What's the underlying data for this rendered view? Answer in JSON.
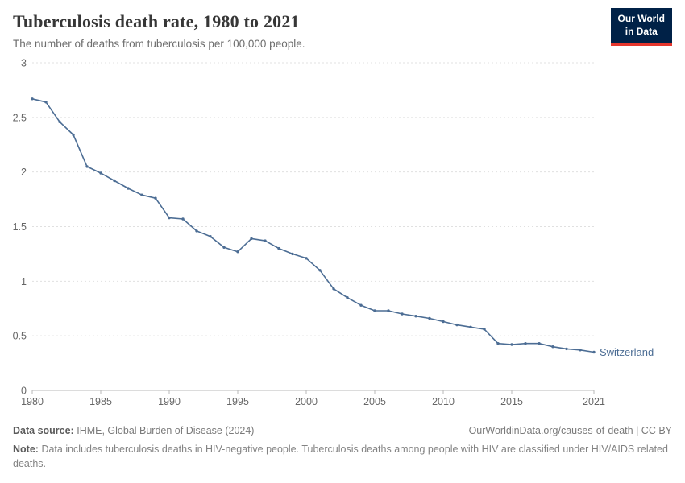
{
  "header": {
    "title": "Tuberculosis death rate, 1980 to 2021",
    "subtitle": "The number of deaths from tuberculosis per 100,000 people.",
    "logo": {
      "line1": "Our World",
      "line2": "in Data",
      "bg_color": "#002147",
      "accent_color": "#e5362d"
    }
  },
  "chart_data": {
    "type": "line",
    "title": "Tuberculosis death rate, 1980 to 2021",
    "xlabel": "",
    "ylabel": "",
    "ylim": [
      0,
      3
    ],
    "yticks": [
      0,
      0.5,
      1,
      1.5,
      2,
      2.5,
      3
    ],
    "xticks": [
      1980,
      1985,
      1990,
      1995,
      2000,
      2005,
      2010,
      2015,
      2021
    ],
    "grid": "dashed-horizontal",
    "legend_position": "end-of-line-label",
    "x": [
      1980,
      1981,
      1982,
      1983,
      1984,
      1985,
      1986,
      1987,
      1988,
      1989,
      1990,
      1991,
      1992,
      1993,
      1994,
      1995,
      1996,
      1997,
      1998,
      1999,
      2000,
      2001,
      2002,
      2003,
      2004,
      2005,
      2006,
      2007,
      2008,
      2009,
      2010,
      2011,
      2012,
      2013,
      2014,
      2015,
      2016,
      2017,
      2018,
      2019,
      2020,
      2021
    ],
    "series": [
      {
        "name": "Switzerland",
        "color": "#4c6d94",
        "values": [
          2.67,
          2.64,
          2.46,
          2.34,
          2.05,
          1.99,
          1.92,
          1.85,
          1.79,
          1.76,
          1.58,
          1.57,
          1.46,
          1.41,
          1.31,
          1.27,
          1.39,
          1.37,
          1.3,
          1.25,
          1.21,
          1.1,
          0.93,
          0.85,
          0.78,
          0.73,
          0.73,
          0.7,
          0.68,
          0.66,
          0.63,
          0.6,
          0.58,
          0.56,
          0.43,
          0.42,
          0.43,
          0.43,
          0.4,
          0.38,
          0.37,
          0.35
        ]
      }
    ],
    "axis_color": "#b8b8b8",
    "gridline_color": "#e0e0e0",
    "tick_label_color": "#666666"
  },
  "footer": {
    "source_label": "Data source:",
    "source_text": "IHME, Global Burden of Disease (2024)",
    "credit": "OurWorldinData.org/causes-of-death | CC BY",
    "note_label": "Note:",
    "note_text": "Data includes tuberculosis deaths in HIV-negative people. Tuberculosis deaths among people with HIV are classified under HIV/AIDS related deaths."
  }
}
